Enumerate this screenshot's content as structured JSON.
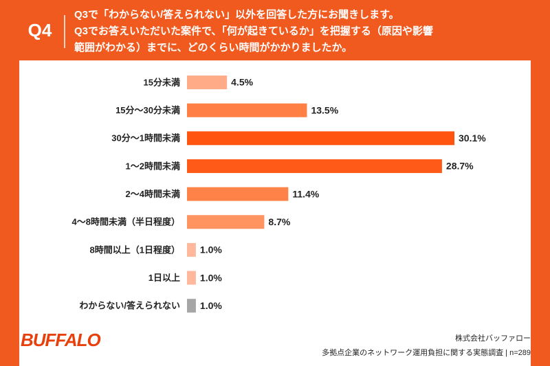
{
  "chart_data": {
    "type": "bar",
    "orientation": "horizontal",
    "question_label": "Q4",
    "title_lines": [
      "Q3で「わからない/答えられない」以外を回答した方にお聞きします。",
      "Q3でお答えいただいた案件で、「何が起きているか」を把握する（原因や影響",
      "範囲がわかる）までに、どのくらい時間がかかりましたか。"
    ],
    "categories": [
      "15分未満",
      "15分〜30分未満",
      "30分〜1時間未満",
      "1〜2時間未満",
      "2〜4時間未満",
      "4〜8時間未満（半日程度）",
      "8時間以上（1日程度）",
      "1日以上",
      "わからない/答えられない"
    ],
    "values": [
      4.5,
      13.5,
      30.1,
      28.7,
      11.4,
      8.7,
      1.0,
      1.0,
      1.0
    ],
    "value_labels": [
      "4.5%",
      "13.5%",
      "30.1%",
      "28.7%",
      "11.4%",
      "8.7%",
      "1.0%",
      "1.0%",
      "1.0%"
    ],
    "colors": [
      "#ffab87",
      "#ff7f45",
      "#ff5511",
      "#ff5a18",
      "#ff8249",
      "#ff9461",
      "#ffb89c",
      "#ffb89c",
      "#a6a6a6"
    ],
    "logo": "BUFFALO",
    "publisher": "株式会社バッファロー",
    "source": "多拠点企業のネットワーク運用負担に関する実態調査 | n=289"
  }
}
